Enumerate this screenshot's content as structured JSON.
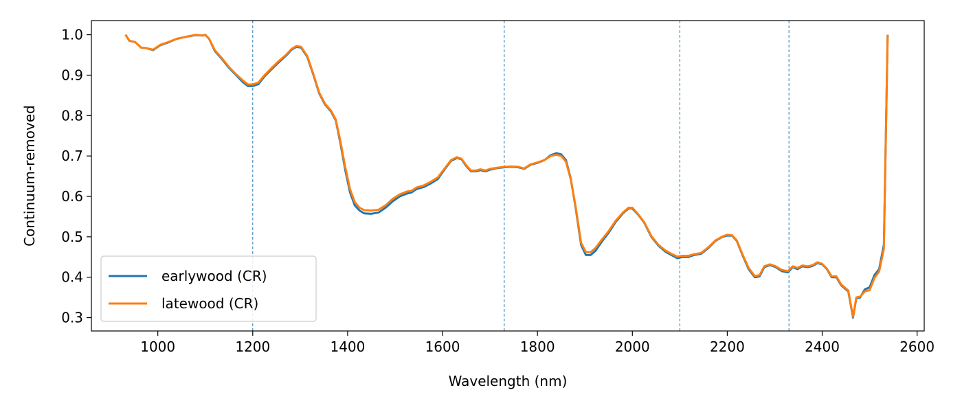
{
  "chart_data": {
    "type": "line",
    "title": "",
    "xlabel": "Wavelength (nm)",
    "ylabel": "Continuum-removed",
    "xlim": [
      860,
      2615
    ],
    "ylim": [
      0.267,
      1.035
    ],
    "xticks": [
      1000,
      1200,
      1400,
      1600,
      1800,
      2000,
      2200,
      2400,
      2600
    ],
    "yticks": [
      0.3,
      0.4,
      0.5,
      0.6,
      0.7,
      0.8,
      0.9,
      1.0
    ],
    "xtick_labels": [
      "1000",
      "1200",
      "1400",
      "1600",
      "1800",
      "2000",
      "2200",
      "2400",
      "2600"
    ],
    "ytick_labels": [
      "0.3",
      "0.4",
      "0.5",
      "0.6",
      "0.7",
      "0.8",
      "0.9",
      "1.0"
    ],
    "vlines": [
      1200,
      1730,
      2100,
      2330
    ],
    "vline_color": "#1f77b4",
    "grid": false,
    "legend_position": "lower-left",
    "series": [
      {
        "name": "earlywood (CR)",
        "color": "#1f77b4",
        "points": [
          [
            932,
            1.0
          ],
          [
            940,
            0.985
          ],
          [
            952,
            0.982
          ],
          [
            965,
            0.968
          ],
          [
            975,
            0.967
          ],
          [
            990,
            0.962
          ],
          [
            1005,
            0.974
          ],
          [
            1020,
            0.98
          ],
          [
            1040,
            0.99
          ],
          [
            1060,
            0.995
          ],
          [
            1080,
            0.999
          ],
          [
            1095,
            0.998
          ],
          [
            1100,
            1.0
          ],
          [
            1108,
            0.99
          ],
          [
            1120,
            0.96
          ],
          [
            1135,
            0.94
          ],
          [
            1150,
            0.918
          ],
          [
            1165,
            0.9
          ],
          [
            1180,
            0.882
          ],
          [
            1190,
            0.873
          ],
          [
            1200,
            0.873
          ],
          [
            1212,
            0.878
          ],
          [
            1225,
            0.897
          ],
          [
            1240,
            0.915
          ],
          [
            1255,
            0.932
          ],
          [
            1270,
            0.948
          ],
          [
            1282,
            0.963
          ],
          [
            1292,
            0.97
          ],
          [
            1302,
            0.968
          ],
          [
            1315,
            0.945
          ],
          [
            1328,
            0.9
          ],
          [
            1340,
            0.855
          ],
          [
            1352,
            0.828
          ],
          [
            1365,
            0.81
          ],
          [
            1375,
            0.788
          ],
          [
            1385,
            0.73
          ],
          [
            1395,
            0.665
          ],
          [
            1405,
            0.61
          ],
          [
            1415,
            0.578
          ],
          [
            1425,
            0.565
          ],
          [
            1435,
            0.558
          ],
          [
            1450,
            0.557
          ],
          [
            1465,
            0.56
          ],
          [
            1480,
            0.572
          ],
          [
            1495,
            0.588
          ],
          [
            1510,
            0.6
          ],
          [
            1525,
            0.607
          ],
          [
            1535,
            0.61
          ],
          [
            1545,
            0.618
          ],
          [
            1560,
            0.623
          ],
          [
            1575,
            0.632
          ],
          [
            1590,
            0.643
          ],
          [
            1605,
            0.668
          ],
          [
            1618,
            0.688
          ],
          [
            1630,
            0.695
          ],
          [
            1640,
            0.692
          ],
          [
            1650,
            0.675
          ],
          [
            1660,
            0.662
          ],
          [
            1670,
            0.662
          ],
          [
            1680,
            0.665
          ],
          [
            1690,
            0.662
          ],
          [
            1700,
            0.666
          ],
          [
            1715,
            0.67
          ],
          [
            1730,
            0.672
          ],
          [
            1745,
            0.673
          ],
          [
            1760,
            0.672
          ],
          [
            1772,
            0.668
          ],
          [
            1785,
            0.678
          ],
          [
            1800,
            0.683
          ],
          [
            1815,
            0.69
          ],
          [
            1828,
            0.702
          ],
          [
            1840,
            0.707
          ],
          [
            1850,
            0.704
          ],
          [
            1860,
            0.69
          ],
          [
            1870,
            0.645
          ],
          [
            1880,
            0.575
          ],
          [
            1892,
            0.48
          ],
          [
            1902,
            0.455
          ],
          [
            1912,
            0.455
          ],
          [
            1922,
            0.465
          ],
          [
            1935,
            0.487
          ],
          [
            1950,
            0.51
          ],
          [
            1965,
            0.537
          ],
          [
            1980,
            0.558
          ],
          [
            1992,
            0.57
          ],
          [
            2000,
            0.57
          ],
          [
            2012,
            0.555
          ],
          [
            2025,
            0.535
          ],
          [
            2040,
            0.5
          ],
          [
            2055,
            0.478
          ],
          [
            2070,
            0.463
          ],
          [
            2082,
            0.455
          ],
          [
            2095,
            0.447
          ],
          [
            2105,
            0.45
          ],
          [
            2118,
            0.45
          ],
          [
            2130,
            0.455
          ],
          [
            2145,
            0.458
          ],
          [
            2160,
            0.472
          ],
          [
            2175,
            0.49
          ],
          [
            2190,
            0.5
          ],
          [
            2200,
            0.503
          ],
          [
            2210,
            0.503
          ],
          [
            2220,
            0.49
          ],
          [
            2232,
            0.455
          ],
          [
            2245,
            0.42
          ],
          [
            2258,
            0.4
          ],
          [
            2268,
            0.402
          ],
          [
            2278,
            0.425
          ],
          [
            2290,
            0.43
          ],
          [
            2302,
            0.425
          ],
          [
            2315,
            0.415
          ],
          [
            2328,
            0.412
          ],
          [
            2338,
            0.425
          ],
          [
            2348,
            0.42
          ],
          [
            2358,
            0.427
          ],
          [
            2370,
            0.425
          ],
          [
            2380,
            0.428
          ],
          [
            2390,
            0.435
          ],
          [
            2400,
            0.432
          ],
          [
            2410,
            0.42
          ],
          [
            2420,
            0.4
          ],
          [
            2430,
            0.4
          ],
          [
            2440,
            0.38
          ],
          [
            2455,
            0.365
          ],
          [
            2465,
            0.3
          ],
          [
            2472,
            0.348
          ],
          [
            2480,
            0.35
          ],
          [
            2490,
            0.37
          ],
          [
            2500,
            0.375
          ],
          [
            2510,
            0.405
          ],
          [
            2520,
            0.42
          ],
          [
            2530,
            0.48
          ],
          [
            2538,
            1.0
          ]
        ]
      },
      {
        "name": "latewood (CR)",
        "color": "#ff7f0e",
        "points": [
          [
            932,
            1.0
          ],
          [
            940,
            0.985
          ],
          [
            952,
            0.982
          ],
          [
            965,
            0.968
          ],
          [
            975,
            0.967
          ],
          [
            990,
            0.963
          ],
          [
            1005,
            0.975
          ],
          [
            1020,
            0.981
          ],
          [
            1040,
            0.99
          ],
          [
            1060,
            0.995
          ],
          [
            1080,
            1.0
          ],
          [
            1095,
            0.998
          ],
          [
            1100,
            1.0
          ],
          [
            1108,
            0.99
          ],
          [
            1120,
            0.962
          ],
          [
            1135,
            0.942
          ],
          [
            1150,
            0.92
          ],
          [
            1165,
            0.902
          ],
          [
            1180,
            0.886
          ],
          [
            1190,
            0.877
          ],
          [
            1200,
            0.877
          ],
          [
            1212,
            0.882
          ],
          [
            1225,
            0.9
          ],
          [
            1240,
            0.918
          ],
          [
            1255,
            0.935
          ],
          [
            1270,
            0.95
          ],
          [
            1282,
            0.965
          ],
          [
            1292,
            0.972
          ],
          [
            1302,
            0.97
          ],
          [
            1315,
            0.947
          ],
          [
            1328,
            0.902
          ],
          [
            1340,
            0.857
          ],
          [
            1352,
            0.83
          ],
          [
            1365,
            0.812
          ],
          [
            1375,
            0.79
          ],
          [
            1385,
            0.735
          ],
          [
            1395,
            0.672
          ],
          [
            1405,
            0.618
          ],
          [
            1415,
            0.586
          ],
          [
            1425,
            0.572
          ],
          [
            1435,
            0.566
          ],
          [
            1450,
            0.565
          ],
          [
            1465,
            0.567
          ],
          [
            1480,
            0.578
          ],
          [
            1495,
            0.594
          ],
          [
            1510,
            0.605
          ],
          [
            1525,
            0.612
          ],
          [
            1535,
            0.614
          ],
          [
            1545,
            0.622
          ],
          [
            1560,
            0.627
          ],
          [
            1575,
            0.636
          ],
          [
            1590,
            0.647
          ],
          [
            1605,
            0.67
          ],
          [
            1618,
            0.69
          ],
          [
            1630,
            0.697
          ],
          [
            1640,
            0.693
          ],
          [
            1650,
            0.677
          ],
          [
            1660,
            0.664
          ],
          [
            1670,
            0.664
          ],
          [
            1680,
            0.667
          ],
          [
            1690,
            0.664
          ],
          [
            1700,
            0.668
          ],
          [
            1715,
            0.671
          ],
          [
            1730,
            0.673
          ],
          [
            1745,
            0.674
          ],
          [
            1760,
            0.673
          ],
          [
            1772,
            0.669
          ],
          [
            1785,
            0.679
          ],
          [
            1800,
            0.684
          ],
          [
            1815,
            0.69
          ],
          [
            1828,
            0.7
          ],
          [
            1840,
            0.703
          ],
          [
            1850,
            0.7
          ],
          [
            1860,
            0.686
          ],
          [
            1870,
            0.643
          ],
          [
            1880,
            0.578
          ],
          [
            1892,
            0.485
          ],
          [
            1902,
            0.462
          ],
          [
            1912,
            0.462
          ],
          [
            1922,
            0.472
          ],
          [
            1935,
            0.492
          ],
          [
            1950,
            0.514
          ],
          [
            1965,
            0.54
          ],
          [
            1980,
            0.56
          ],
          [
            1992,
            0.572
          ],
          [
            2000,
            0.572
          ],
          [
            2012,
            0.556
          ],
          [
            2025,
            0.536
          ],
          [
            2040,
            0.502
          ],
          [
            2055,
            0.48
          ],
          [
            2070,
            0.466
          ],
          [
            2082,
            0.458
          ],
          [
            2095,
            0.451
          ],
          [
            2105,
            0.453
          ],
          [
            2118,
            0.453
          ],
          [
            2130,
            0.457
          ],
          [
            2145,
            0.46
          ],
          [
            2160,
            0.474
          ],
          [
            2175,
            0.491
          ],
          [
            2190,
            0.501
          ],
          [
            2200,
            0.505
          ],
          [
            2210,
            0.504
          ],
          [
            2220,
            0.491
          ],
          [
            2232,
            0.457
          ],
          [
            2245,
            0.423
          ],
          [
            2258,
            0.403
          ],
          [
            2268,
            0.405
          ],
          [
            2278,
            0.427
          ],
          [
            2290,
            0.432
          ],
          [
            2302,
            0.427
          ],
          [
            2315,
            0.418
          ],
          [
            2328,
            0.415
          ],
          [
            2338,
            0.427
          ],
          [
            2348,
            0.423
          ],
          [
            2358,
            0.429
          ],
          [
            2370,
            0.427
          ],
          [
            2380,
            0.43
          ],
          [
            2390,
            0.437
          ],
          [
            2400,
            0.433
          ],
          [
            2410,
            0.421
          ],
          [
            2420,
            0.402
          ],
          [
            2430,
            0.402
          ],
          [
            2440,
            0.382
          ],
          [
            2455,
            0.367
          ],
          [
            2465,
            0.302
          ],
          [
            2472,
            0.35
          ],
          [
            2480,
            0.352
          ],
          [
            2490,
            0.365
          ],
          [
            2500,
            0.368
          ],
          [
            2510,
            0.398
          ],
          [
            2520,
            0.414
          ],
          [
            2530,
            0.47
          ],
          [
            2538,
            1.0
          ]
        ]
      }
    ]
  }
}
